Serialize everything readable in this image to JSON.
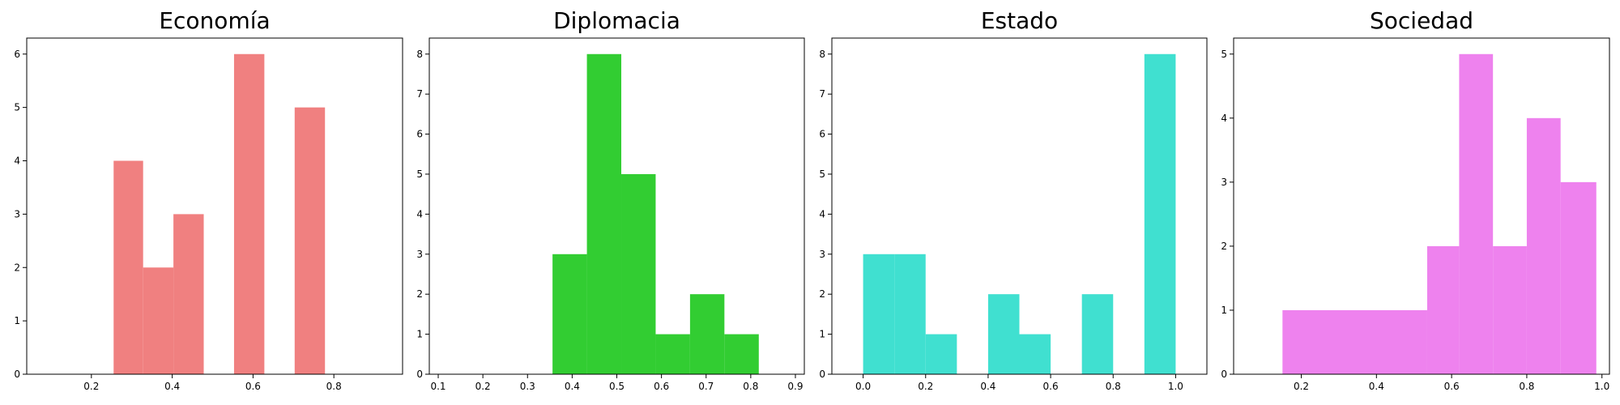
{
  "chart_data": [
    {
      "type": "bar",
      "title": "Economía",
      "color": "#F08080",
      "xlim": [
        0.04,
        0.97
      ],
      "ylim": [
        0,
        6.3
      ],
      "xticks": [
        0.2,
        0.4,
        0.6,
        0.8
      ],
      "yticks": [
        0,
        1,
        2,
        3,
        4,
        5,
        6
      ],
      "bins": [
        {
          "x0": 0.255,
          "x1": 0.328,
          "value": 4
        },
        {
          "x0": 0.328,
          "x1": 0.403,
          "value": 2
        },
        {
          "x0": 0.403,
          "x1": 0.478,
          "value": 3
        },
        {
          "x0": 0.478,
          "x1": 0.553,
          "value": 0
        },
        {
          "x0": 0.553,
          "x1": 0.628,
          "value": 6
        },
        {
          "x0": 0.628,
          "x1": 0.703,
          "value": 0
        },
        {
          "x0": 0.703,
          "x1": 0.778,
          "value": 5
        }
      ]
    },
    {
      "type": "bar",
      "title": "Diplomacia",
      "color": "#32CD32",
      "xlim": [
        0.08,
        0.92
      ],
      "ylim": [
        0,
        8.4
      ],
      "xticks": [
        0.1,
        0.2,
        0.3,
        0.4,
        0.5,
        0.6,
        0.7,
        0.8,
        0.9
      ],
      "yticks": [
        0,
        1,
        2,
        3,
        4,
        5,
        6,
        7,
        8
      ],
      "bins": [
        {
          "x0": 0.356,
          "x1": 0.433,
          "value": 3
        },
        {
          "x0": 0.433,
          "x1": 0.51,
          "value": 8
        },
        {
          "x0": 0.51,
          "x1": 0.587,
          "value": 5
        },
        {
          "x0": 0.587,
          "x1": 0.664,
          "value": 1
        },
        {
          "x0": 0.664,
          "x1": 0.741,
          "value": 2
        },
        {
          "x0": 0.741,
          "x1": 0.818,
          "value": 1
        }
      ]
    },
    {
      "type": "bar",
      "title": "Estado",
      "color": "#40E0D0",
      "xlim": [
        -0.1,
        1.1
      ],
      "ylim": [
        0,
        8.4
      ],
      "xticks": [
        0.0,
        0.2,
        0.4,
        0.6,
        0.8,
        1.0
      ],
      "yticks": [
        0,
        1,
        2,
        3,
        4,
        5,
        6,
        7,
        8
      ],
      "bins": [
        {
          "x0": 0.0,
          "x1": 0.1,
          "value": 3
        },
        {
          "x0": 0.1,
          "x1": 0.2,
          "value": 3
        },
        {
          "x0": 0.2,
          "x1": 0.3,
          "value": 1
        },
        {
          "x0": 0.3,
          "x1": 0.4,
          "value": 0
        },
        {
          "x0": 0.4,
          "x1": 0.5,
          "value": 2
        },
        {
          "x0": 0.5,
          "x1": 0.6,
          "value": 1
        },
        {
          "x0": 0.6,
          "x1": 0.7,
          "value": 0
        },
        {
          "x0": 0.7,
          "x1": 0.8,
          "value": 2
        },
        {
          "x0": 0.8,
          "x1": 0.9,
          "value": 0
        },
        {
          "x0": 0.9,
          "x1": 1.0,
          "value": 8
        }
      ]
    },
    {
      "type": "bar",
      "title": "Sociedad",
      "color": "#EE82EE",
      "xlim": [
        0.02,
        1.02
      ],
      "ylim": [
        0,
        5.25
      ],
      "xticks": [
        0.2,
        0.4,
        0.6,
        0.8,
        1.0
      ],
      "yticks": [
        0,
        1,
        2,
        3,
        4,
        5
      ],
      "bins": [
        {
          "x0": 0.15,
          "x1": 0.535,
          "value": 1
        },
        {
          "x0": 0.535,
          "x1": 0.62,
          "value": 2
        },
        {
          "x0": 0.62,
          "x1": 0.71,
          "value": 5
        },
        {
          "x0": 0.71,
          "x1": 0.8,
          "value": 2
        },
        {
          "x0": 0.8,
          "x1": 0.89,
          "value": 4
        },
        {
          "x0": 0.89,
          "x1": 0.985,
          "value": 3
        }
      ]
    }
  ]
}
